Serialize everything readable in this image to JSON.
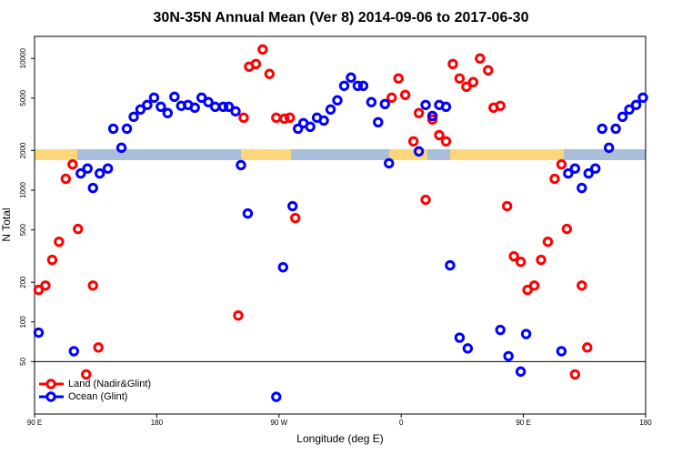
{
  "chart_data": {
    "type": "scatter",
    "title": "30N-35N Annual Mean (Ver 8)   2014-09-06 to 2017-06-30",
    "x_label": "Longitude (deg E)",
    "y_label": "N Total",
    "log_y": true,
    "legend": "bottom-left",
    "hline": 50,
    "xlim": [
      90,
      540
    ],
    "xticks": [
      {
        "value": 90,
        "label": "90 E"
      },
      180,
      {
        "value": 270,
        "label": "90 W"
      },
      {
        "value": 360,
        "label": "0"
      },
      {
        "value": 450,
        "label": "90 E"
      },
      {
        "value": 540,
        "label": "180"
      }
    ],
    "ylim": [
      20,
      14700
    ],
    "yticks": [
      50,
      100,
      200,
      500,
      1000,
      2000,
      5000,
      10000
    ],
    "series": [
      {
        "name": "Land (Nadir&Glint)",
        "color": "#ff0000",
        "x": [
          93,
          98,
          103,
          108,
          113,
          118,
          122,
          128,
          133,
          137,
          240,
          244,
          248,
          253,
          258,
          263,
          268,
          274,
          278,
          282,
          353,
          358,
          363,
          369,
          373,
          378,
          383,
          388,
          393,
          398,
          403,
          408,
          413,
          418,
          424,
          428,
          433,
          438,
          443,
          448,
          453,
          458,
          463,
          468,
          473,
          478,
          482,
          488,
          493,
          497
        ],
        "values": [
          175,
          189,
          296,
          406,
          1220,
          1570,
          508,
          40,
          189,
          64,
          112,
          3550,
          8660,
          9080,
          11700,
          7630,
          3550,
          3490,
          3550,
          615,
          5040,
          7050,
          5290,
          2350,
          3850,
          846,
          3440,
          2620,
          2350,
          9080,
          7050,
          6100,
          6610,
          10000,
          8130,
          4230,
          4370,
          757,
          315,
          286,
          175,
          189,
          296,
          406,
          1220,
          1570,
          508,
          40,
          189,
          64
        ]
      },
      {
        "name": "Ocean (Glint)",
        "color": "#0000ff",
        "x": [
          93,
          119,
          124,
          129,
          133,
          138,
          144,
          148,
          154,
          158,
          163,
          168,
          173,
          178,
          183,
          188,
          193,
          198,
          203,
          208,
          213,
          218,
          223,
          229,
          233,
          238,
          242,
          247,
          268,
          273,
          280,
          284,
          288,
          293,
          298,
          303,
          308,
          313,
          318,
          323,
          328,
          332,
          338,
          343,
          348,
          351,
          373,
          378,
          383,
          388,
          393,
          396,
          403,
          409,
          433,
          439,
          448,
          452,
          478,
          483,
          488,
          493,
          498,
          503,
          508,
          513,
          518,
          523,
          528,
          533,
          538
        ],
        "values": [
          83,
          60,
          1340,
          1460,
          1040,
          1340,
          1460,
          2930,
          2100,
          2930,
          3610,
          4100,
          4440,
          5040,
          4300,
          3850,
          5120,
          4370,
          4440,
          4230,
          5040,
          4660,
          4300,
          4300,
          4300,
          3970,
          1550,
          666,
          27,
          260,
          757,
          2930,
          3230,
          3030,
          3550,
          3380,
          4100,
          4810,
          6200,
          7160,
          6200,
          6200,
          4660,
          3280,
          4510,
          1600,
          1970,
          4440,
          3660,
          4440,
          4300,
          269,
          76,
          63,
          87,
          55,
          42,
          81,
          60,
          1340,
          1460,
          1040,
          1340,
          1460,
          2930,
          2100,
          2930,
          3610,
          4100,
          4440,
          5040
        ]
      }
    ]
  }
}
